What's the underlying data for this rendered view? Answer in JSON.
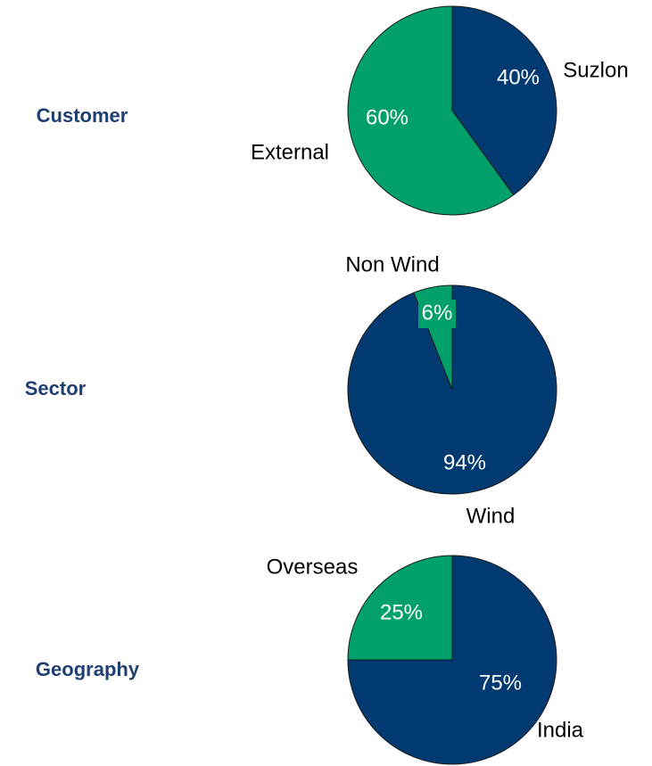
{
  "chart_data": [
    {
      "type": "pie",
      "title": "Customer",
      "categories": [
        "Suzlon",
        "External"
      ],
      "values": [
        40,
        60
      ],
      "value_labels": [
        "40%",
        "60%"
      ],
      "colors": [
        "#003a70",
        "#00a06b"
      ]
    },
    {
      "type": "pie",
      "title": "Sector",
      "categories": [
        "Wind",
        "Non Wind"
      ],
      "values": [
        94,
        6
      ],
      "value_labels": [
        "94%",
        "6%"
      ],
      "colors": [
        "#003a70",
        "#00a06b"
      ]
    },
    {
      "type": "pie",
      "title": "Geography",
      "categories": [
        "India",
        "Overseas"
      ],
      "values": [
        75,
        25
      ],
      "value_labels": [
        "75%",
        "25%"
      ],
      "colors": [
        "#003a70",
        "#00a06b"
      ]
    }
  ]
}
